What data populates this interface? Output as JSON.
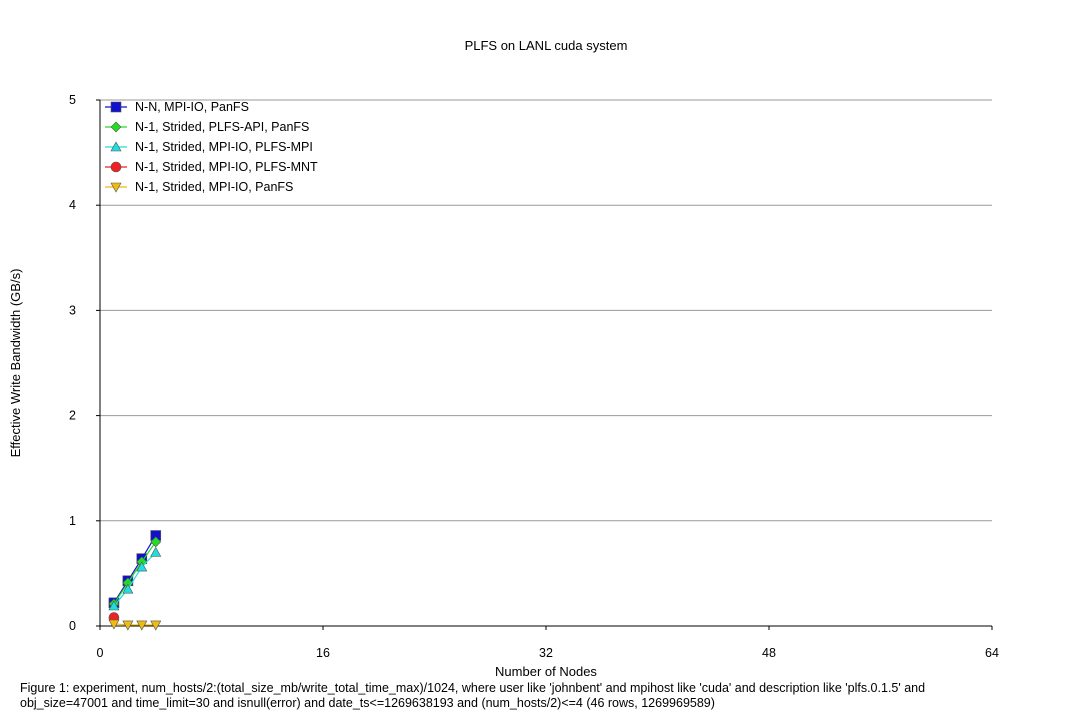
{
  "chart_data": {
    "type": "line",
    "title": "PLFS on LANL cuda system",
    "xlabel": "Number of Nodes",
    "ylabel": "Effective Write Bandwidth (GB/s)",
    "xlim": [
      0,
      64
    ],
    "ylim": [
      0,
      5
    ],
    "xticks": [
      "0",
      "16",
      "32",
      "48",
      "64"
    ],
    "yticks": [
      "0",
      "1",
      "2",
      "3",
      "4",
      "5"
    ],
    "grid": "horizontal",
    "legend_position": "top-left",
    "series": [
      {
        "name": "N-N, MPI-IO, PanFS",
        "color": "#1111cc",
        "marker": "square",
        "x": [
          1,
          2,
          3,
          4
        ],
        "y": [
          0.22,
          0.43,
          0.64,
          0.86
        ]
      },
      {
        "name": "N-1, Strided, PLFS-API, PanFS",
        "color": "#22dd22",
        "marker": "diamond",
        "x": [
          1,
          2,
          3,
          4
        ],
        "y": [
          0.21,
          0.41,
          0.61,
          0.8
        ]
      },
      {
        "name": "N-1, Strided, MPI-IO, PLFS-MPI",
        "color": "#22dddd",
        "marker": "triangle-up",
        "x": [
          1,
          2,
          3,
          4
        ],
        "y": [
          0.19,
          0.35,
          0.56,
          0.7
        ]
      },
      {
        "name": "N-1, Strided, MPI-IO, PLFS-MNT",
        "color": "#ee2222",
        "marker": "circle",
        "x": [
          1
        ],
        "y": [
          0.08
        ]
      },
      {
        "name": "N-1, Strided, MPI-IO, PanFS",
        "color": "#eebb11",
        "marker": "triangle-down",
        "x": [
          1,
          2,
          3,
          4
        ],
        "y": [
          0.02,
          0.01,
          0.01,
          0.01
        ]
      }
    ]
  },
  "caption": {
    "line1": "Figure 1: experiment, num_hosts/2:(total_size_mb/write_total_time_max)/1024, where user like 'johnbent' and mpihost like 'cuda' and description like 'plfs.0.1.5' and",
    "line2": " obj_size=47001 and time_limit=30 and isnull(error) and date_ts<=1269638193 and (num_hosts/2)<=4 (46 rows, 1269969589)"
  }
}
